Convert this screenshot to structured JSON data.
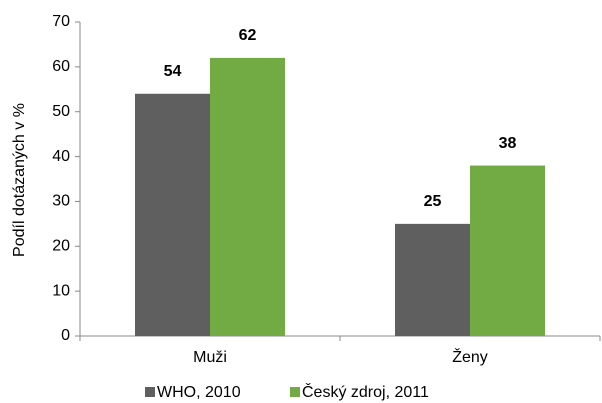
{
  "chart_data": {
    "type": "bar",
    "categories": [
      "Muži",
      "Ženy"
    ],
    "series": [
      {
        "name": "WHO, 2010",
        "color": "#5f5f5f",
        "values": [
          54,
          25
        ]
      },
      {
        "name": "Český zdroj, 2011",
        "color": "#72ab43",
        "values": [
          62,
          38
        ]
      }
    ],
    "ylabel": "Podíl dotázaných v %",
    "ylim": [
      0,
      70
    ],
    "yticks": [
      0,
      10,
      20,
      30,
      40,
      50,
      60,
      70
    ],
    "legend": "bottom"
  }
}
